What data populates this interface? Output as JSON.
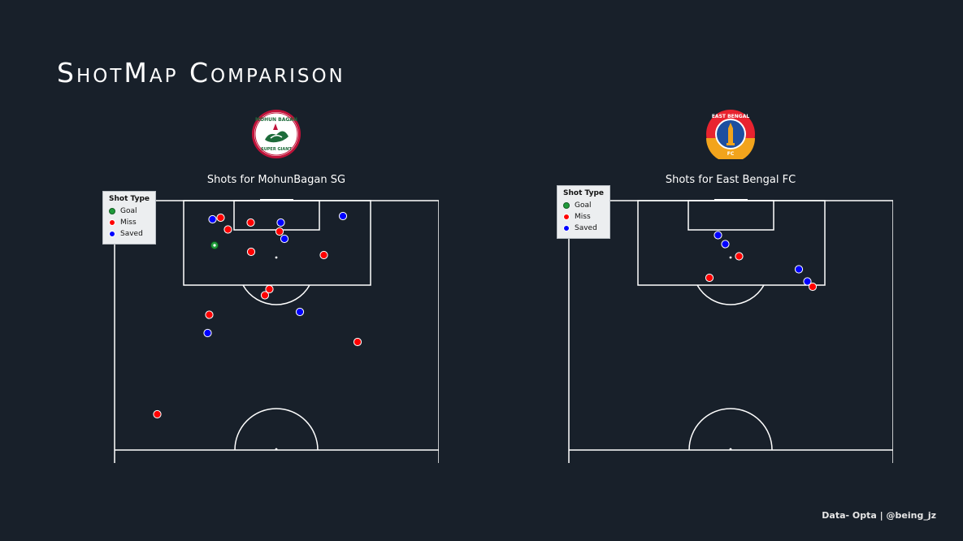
{
  "title": "ShotMap Comparison",
  "footer": "Data- Opta | @being_jz",
  "legend": {
    "title": "Shot Type",
    "items": [
      {
        "label": "Goal",
        "color": "#1f9a3a"
      },
      {
        "label": "Miss",
        "color": "#ff0000"
      },
      {
        "label": "Saved",
        "color": "#0000ff"
      }
    ]
  },
  "chart_data": [
    {
      "type": "scatter",
      "title": "Shots for MohunBagan SG",
      "team": "MohunBagan SG",
      "crest_icon": "mohun-bagan-crest-icon",
      "crest_lines": [
        "MOHUN BAGAN",
        "SUPER GIANT"
      ],
      "series": [
        {
          "name": "Goal",
          "color": "#1f9a3a",
          "points": [
            [
              24.8,
              11.0
            ]
          ]
        },
        {
          "name": "Miss",
          "color": "#ff0000",
          "points": [
            [
              26.3,
              4.2
            ],
            [
              33.7,
              5.4
            ],
            [
              28.1,
              7.1
            ],
            [
              33.8,
              12.6
            ],
            [
              40.8,
              7.6
            ],
            [
              51.7,
              13.4
            ],
            [
              37.2,
              23.3
            ],
            [
              38.3,
              21.8
            ],
            [
              23.5,
              28.1
            ],
            [
              10.7,
              52.6
            ],
            [
              60.0,
              34.8
            ]
          ]
        },
        {
          "name": "Saved",
          "color": "#0000ff",
          "points": [
            [
              56.4,
              3.8
            ],
            [
              41.1,
              5.4
            ],
            [
              42.0,
              9.4
            ],
            [
              45.8,
              27.4
            ],
            [
              24.3,
              4.6
            ],
            [
              23.1,
              32.6
            ]
          ]
        }
      ]
    },
    {
      "type": "scatter",
      "title": "Shots for East Bengal FC",
      "team": "East Bengal FC",
      "crest_icon": "east-bengal-crest-icon",
      "crest_lines": [
        "EAST BENGAL",
        "FC"
      ],
      "series": [
        {
          "name": "Goal",
          "color": "#1f9a3a",
          "points": []
        },
        {
          "name": "Miss",
          "color": "#ff0000",
          "points": [
            [
              42.1,
              13.7
            ],
            [
              34.8,
              19.0
            ],
            [
              60.2,
              21.2
            ]
          ]
        },
        {
          "name": "Saved",
          "color": "#0000ff",
          "points": [
            [
              36.9,
              8.5
            ],
            [
              38.7,
              10.7
            ],
            [
              56.8,
              16.9
            ],
            [
              58.9,
              19.9
            ]
          ]
        }
      ]
    }
  ]
}
